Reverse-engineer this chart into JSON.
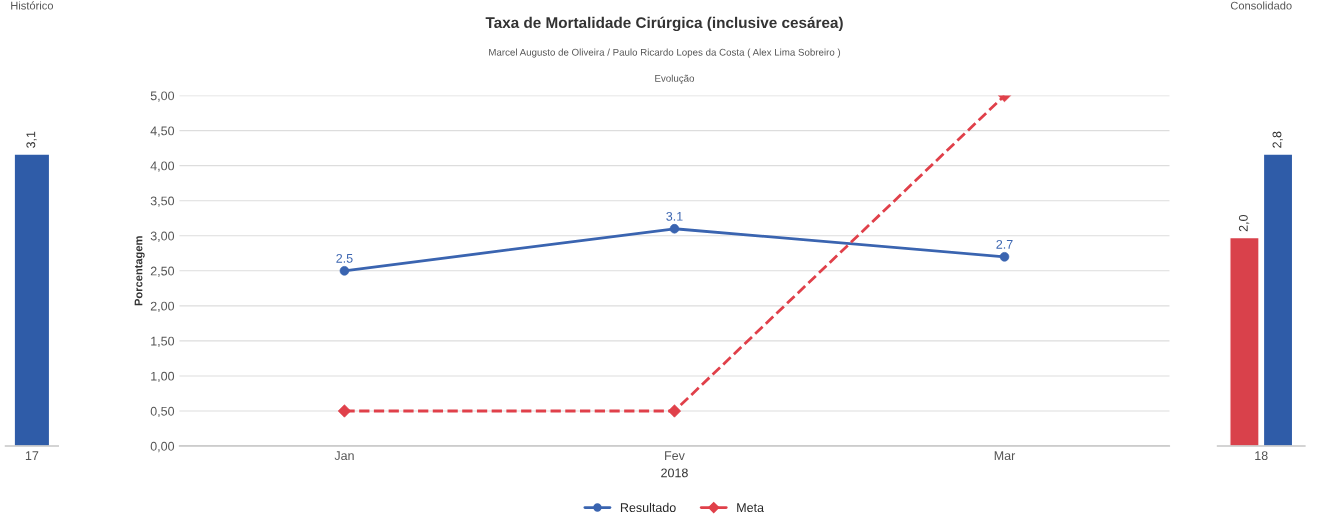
{
  "chart_data": [
    {
      "type": "bar",
      "title": "Histórico",
      "categories": [
        "17"
      ],
      "series": [
        {
          "color": "#2f5ca8",
          "values": [
            3.1
          ],
          "value_labels": [
            "3,1"
          ]
        }
      ]
    },
    {
      "type": "line",
      "title": "Taxa de Mortalidade Cirúrgica (inclusive cesárea)",
      "subtitle": "Marcel Augusto de Oliveira / Paulo Ricardo Lopes da Costa ( Alex Lima Sobreiro )",
      "annotations": [
        "Evolução"
      ],
      "xlabel": "2018",
      "ylabel": "Porcentagem",
      "categories": [
        "Jan",
        "Fev",
        "Mar"
      ],
      "ylim": [
        0,
        5
      ],
      "yticks": [
        {
          "value": 0,
          "label": "0,00"
        },
        {
          "value": 0.5,
          "label": "0,50"
        },
        {
          "value": 1,
          "label": "1,00"
        },
        {
          "value": 1.5,
          "label": "1,50"
        },
        {
          "value": 2,
          "label": "2,00"
        },
        {
          "value": 2.5,
          "label": "2,50"
        },
        {
          "value": 3,
          "label": "3,00"
        },
        {
          "value": 3.5,
          "label": "3,50"
        },
        {
          "value": 4,
          "label": "4,00"
        },
        {
          "value": 4.5,
          "label": "4,50"
        },
        {
          "value": 5,
          "label": "5,00"
        }
      ],
      "grid": "y",
      "legend": "bottom",
      "series": [
        {
          "name": "Resultado",
          "color": "#3a64b0",
          "values": [
            2.5,
            3.1,
            2.7
          ],
          "value_labels": [
            "2.5",
            "3.1",
            "2.7"
          ],
          "marker": "circle",
          "line_style": "solid"
        },
        {
          "name": "Meta",
          "color": "#e0404a",
          "values": [
            0.5,
            0.5,
            5.0
          ],
          "marker": "diamond",
          "line_style": "dashed"
        }
      ]
    },
    {
      "type": "bar",
      "title": "Consolidado",
      "categories": [
        "18"
      ],
      "series": [
        {
          "color": "#d9414b",
          "values": [
            2.0
          ],
          "value_labels": [
            "2,0"
          ]
        },
        {
          "color": "#2f5ca8",
          "values": [
            2.8
          ],
          "value_labels": [
            "2,8"
          ]
        }
      ]
    }
  ]
}
